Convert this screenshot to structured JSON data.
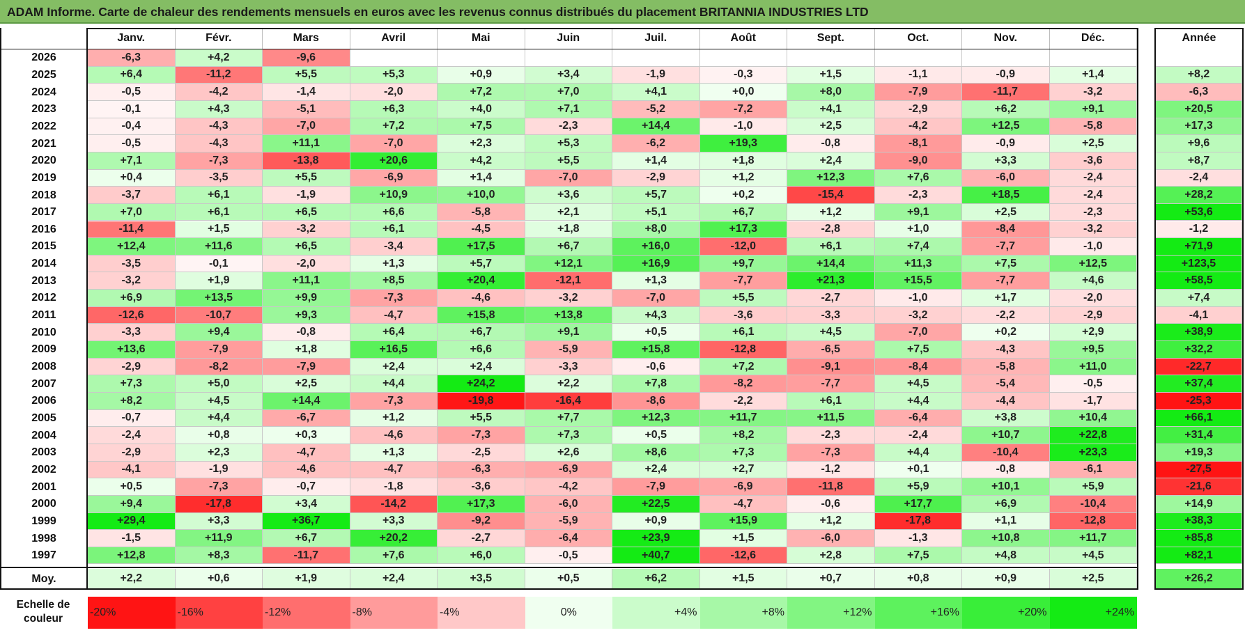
{
  "title": "ADAM Informe. Carte de chaleur des rendements mensuels en euros avec les revenus connus distribués du placement BRITANNIA INDUSTRIES LTD",
  "months": [
    "Janv.",
    "Févr.",
    "Mars",
    "Avril",
    "Mai",
    "Juin",
    "Juil.",
    "Août",
    "Sept.",
    "Oct.",
    "Nov.",
    "Déc."
  ],
  "annual_header": "Année",
  "average_label": "Moy.",
  "scale_label": "Echelle de couleur",
  "colors": {
    "title_bar": "#84bd64",
    "negative": "#ff0000",
    "positive": "#00e000",
    "neutral": "#ffffff"
  },
  "chart_data": {
    "type": "heatmap",
    "title": "Carte de chaleur des rendements mensuels en euros",
    "x": [
      "Janv.",
      "Févr.",
      "Mars",
      "Avril",
      "Mai",
      "Juin",
      "Juil.",
      "Août",
      "Sept.",
      "Oct.",
      "Nov.",
      "Déc."
    ],
    "rows": [
      {
        "year": "2026",
        "values": [
          "-6,3",
          "+4,2",
          "-9,6",
          "",
          "",
          "",
          "",
          "",
          "",
          "",
          "",
          ""
        ],
        "annual": ""
      },
      {
        "year": "2025",
        "values": [
          "+6,4",
          "-11,2",
          "+5,5",
          "+5,3",
          "+0,9",
          "+3,4",
          "-1,9",
          "-0,3",
          "+1,5",
          "-1,1",
          "-0,9",
          "+1,4"
        ],
        "annual": "+8,2"
      },
      {
        "year": "2024",
        "values": [
          "-0,5",
          "-4,2",
          "-1,4",
          "-2,0",
          "+7,2",
          "+7,0",
          "+4,1",
          "+0,0",
          "+8,0",
          "-7,9",
          "-11,7",
          "-3,2"
        ],
        "annual": "-6,3"
      },
      {
        "year": "2023",
        "values": [
          "-0,1",
          "+4,3",
          "-5,1",
          "+6,3",
          "+4,0",
          "+7,1",
          "-5,2",
          "-7,2",
          "+4,1",
          "-2,9",
          "+6,2",
          "+9,1"
        ],
        "annual": "+20,5"
      },
      {
        "year": "2022",
        "values": [
          "-0,4",
          "-4,3",
          "-7,0",
          "+7,2",
          "+7,5",
          "-2,3",
          "+14,4",
          "-1,0",
          "+2,5",
          "-4,2",
          "+12,5",
          "-5,8"
        ],
        "annual": "+17,3"
      },
      {
        "year": "2021",
        "values": [
          "-0,5",
          "-4,3",
          "+11,1",
          "-7,0",
          "+2,3",
          "+5,3",
          "-6,2",
          "+19,3",
          "-0,8",
          "-8,1",
          "-0,9",
          "+2,5"
        ],
        "annual": "+9,6"
      },
      {
        "year": "2020",
        "values": [
          "+7,1",
          "-7,3",
          "-13,8",
          "+20,6",
          "+4,2",
          "+5,5",
          "+1,4",
          "+1,8",
          "+2,4",
          "-9,0",
          "+3,3",
          "-3,6"
        ],
        "annual": "+8,7"
      },
      {
        "year": "2019",
        "values": [
          "+0,4",
          "-3,5",
          "+5,5",
          "-6,9",
          "+1,4",
          "-7,0",
          "-2,9",
          "+1,2",
          "+12,3",
          "+7,6",
          "-6,0",
          "-2,4"
        ],
        "annual": "-2,4"
      },
      {
        "year": "2018",
        "values": [
          "-3,7",
          "+6,1",
          "-1,9",
          "+10,9",
          "+10,0",
          "+3,6",
          "+5,7",
          "+0,2",
          "-15,4",
          "-2,3",
          "+18,5",
          "-2,4"
        ],
        "annual": "+28,2"
      },
      {
        "year": "2017",
        "values": [
          "+7,0",
          "+6,1",
          "+6,5",
          "+6,6",
          "-5,8",
          "+2,1",
          "+5,1",
          "+6,7",
          "+1,2",
          "+9,1",
          "+2,5",
          "-2,3"
        ],
        "annual": "+53,6"
      },
      {
        "year": "2016",
        "values": [
          "-11,4",
          "+1,5",
          "-3,2",
          "+6,1",
          "-4,5",
          "+1,8",
          "+8,0",
          "+17,3",
          "-2,8",
          "+1,0",
          "-8,4",
          "-3,2"
        ],
        "annual": "-1,2"
      },
      {
        "year": "2015",
        "values": [
          "+12,4",
          "+11,6",
          "+6,5",
          "-3,4",
          "+17,5",
          "+6,7",
          "+16,0",
          "-12,0",
          "+6,1",
          "+7,4",
          "-7,7",
          "-1,0"
        ],
        "annual": "+71,9"
      },
      {
        "year": "2014",
        "values": [
          "-3,5",
          "-0,1",
          "-2,0",
          "+1,3",
          "+5,7",
          "+12,1",
          "+16,9",
          "+9,7",
          "+14,4",
          "+11,3",
          "+7,5",
          "+12,5"
        ],
        "annual": "+123,5"
      },
      {
        "year": "2013",
        "values": [
          "-3,2",
          "+1,9",
          "+11,1",
          "+8,5",
          "+20,4",
          "-12,1",
          "+1,3",
          "-7,7",
          "+21,3",
          "+15,5",
          "-7,7",
          "+4,6"
        ],
        "annual": "+58,5"
      },
      {
        "year": "2012",
        "values": [
          "+6,9",
          "+13,5",
          "+9,9",
          "-7,3",
          "-4,6",
          "-3,2",
          "-7,0",
          "+5,5",
          "-2,7",
          "-1,0",
          "+1,7",
          "-2,0"
        ],
        "annual": "+7,4"
      },
      {
        "year": "2011",
        "values": [
          "-12,6",
          "-10,7",
          "+9,3",
          "-4,7",
          "+15,8",
          "+13,8",
          "+4,3",
          "-3,6",
          "-3,3",
          "-3,2",
          "-2,2",
          "-2,9"
        ],
        "annual": "-4,1"
      },
      {
        "year": "2010",
        "values": [
          "-3,3",
          "+9,4",
          "-0,8",
          "+6,4",
          "+6,7",
          "+9,1",
          "+0,5",
          "+6,1",
          "+4,5",
          "-7,0",
          "+0,2",
          "+2,9"
        ],
        "annual": "+38,9"
      },
      {
        "year": "2009",
        "values": [
          "+13,6",
          "-7,9",
          "+1,8",
          "+16,5",
          "+6,6",
          "-5,9",
          "+15,8",
          "-12,8",
          "-6,5",
          "+7,5",
          "-4,3",
          "+9,5"
        ],
        "annual": "+32,2"
      },
      {
        "year": "2008",
        "values": [
          "-2,9",
          "-8,2",
          "-7,9",
          "+2,4",
          "+2,4",
          "-3,3",
          "-0,6",
          "+7,2",
          "-9,1",
          "-8,4",
          "-5,8",
          "+11,0"
        ],
        "annual": "-22,7"
      },
      {
        "year": "2007",
        "values": [
          "+7,3",
          "+5,0",
          "+2,5",
          "+4,4",
          "+24,2",
          "+2,2",
          "+7,8",
          "-8,2",
          "-7,7",
          "+4,5",
          "-5,4",
          "-0,5"
        ],
        "annual": "+37,4"
      },
      {
        "year": "2006",
        "values": [
          "+8,2",
          "+4,5",
          "+14,4",
          "-7,3",
          "-19,8",
          "-16,4",
          "-8,6",
          "-2,2",
          "+6,1",
          "+4,4",
          "-4,4",
          "-1,7"
        ],
        "annual": "-25,3"
      },
      {
        "year": "2005",
        "values": [
          "-0,7",
          "+4,4",
          "-6,7",
          "+1,2",
          "+5,5",
          "+7,7",
          "+12,3",
          "+11,7",
          "+11,5",
          "-6,4",
          "+3,8",
          "+10,4"
        ],
        "annual": "+66,1"
      },
      {
        "year": "2004",
        "values": [
          "-2,4",
          "+0,8",
          "+0,3",
          "-4,6",
          "-7,3",
          "+7,3",
          "+0,5",
          "+8,2",
          "-2,3",
          "-2,4",
          "+10,7",
          "+22,8"
        ],
        "annual": "+31,4"
      },
      {
        "year": "2003",
        "values": [
          "-2,9",
          "+2,3",
          "-4,7",
          "+1,3",
          "-2,5",
          "+2,6",
          "+8,6",
          "+7,3",
          "-7,3",
          "+4,4",
          "-10,4",
          "+23,3"
        ],
        "annual": "+19,3"
      },
      {
        "year": "2002",
        "values": [
          "-4,1",
          "-1,9",
          "-4,6",
          "-4,7",
          "-6,3",
          "-6,9",
          "+2,4",
          "+2,7",
          "-1,2",
          "+0,1",
          "-0,8",
          "-6,1"
        ],
        "annual": "-27,5"
      },
      {
        "year": "2001",
        "values": [
          "+0,5",
          "-7,3",
          "-0,7",
          "-1,8",
          "-3,6",
          "-4,2",
          "-7,9",
          "-6,9",
          "-11,8",
          "+5,9",
          "+10,1",
          "+5,9"
        ],
        "annual": "-21,6"
      },
      {
        "year": "2000",
        "values": [
          "+9,4",
          "-17,8",
          "+3,4",
          "-14,2",
          "+17,3",
          "-6,0",
          "+22,5",
          "-4,7",
          "-0,6",
          "+17,7",
          "+6,9",
          "-10,4"
        ],
        "annual": "+14,9"
      },
      {
        "year": "1999",
        "values": [
          "+29,4",
          "+3,3",
          "+36,7",
          "+3,3",
          "-9,2",
          "-5,9",
          "+0,9",
          "+15,9",
          "+1,2",
          "-17,8",
          "+1,1",
          "-12,8"
        ],
        "annual": "+38,3"
      },
      {
        "year": "1998",
        "values": [
          "-1,5",
          "+11,9",
          "+6,7",
          "+20,2",
          "-2,7",
          "-6,4",
          "+23,9",
          "+1,5",
          "-6,0",
          "-1,3",
          "+10,8",
          "+11,7"
        ],
        "annual": "+85,8"
      },
      {
        "year": "1997",
        "values": [
          "+12,8",
          "+8,3",
          "-11,7",
          "+7,6",
          "+6,0",
          "-0,5",
          "+40,7",
          "-12,6",
          "+2,8",
          "+7,5",
          "+4,8",
          "+4,5"
        ],
        "annual": "+82,1"
      }
    ],
    "average": {
      "values": [
        "+2,2",
        "+0,6",
        "+1,9",
        "+2,4",
        "+3,5",
        "+0,5",
        "+6,2",
        "+1,5",
        "+0,7",
        "+0,8",
        "+0,9",
        "+2,5"
      ],
      "annual": "+26,2"
    },
    "color_scale": [
      "-20%",
      "-16%",
      "-12%",
      "-8%",
      "-4%",
      "0%",
      "+4%",
      "+8%",
      "+12%",
      "+16%",
      "+20%",
      "+24%"
    ],
    "color_scale_values": [
      -20,
      -16,
      -12,
      -8,
      -4,
      0,
      4,
      8,
      12,
      16,
      20,
      24
    ]
  }
}
